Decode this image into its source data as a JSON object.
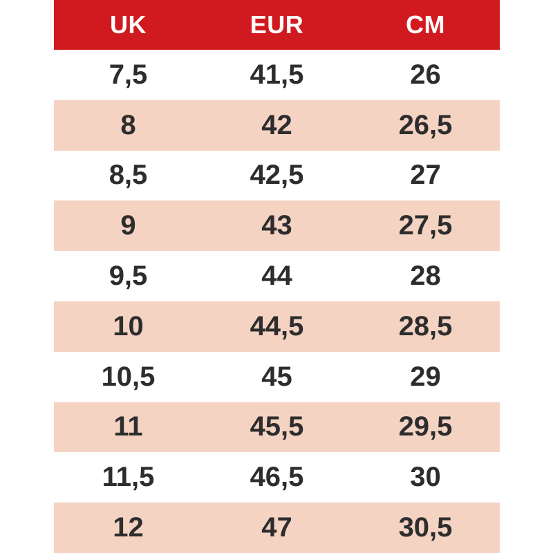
{
  "colors": {
    "page_bg": "#ffffff",
    "header_bg": "#d11a1f",
    "header_text": "#ffffff",
    "row_bg": "#ffffff",
    "row_alt_bg": "#f5d3c3",
    "cell_text": "#2d2d2d"
  },
  "chart_data": {
    "type": "table",
    "title": "",
    "columns": [
      "UK",
      "EUR",
      "CM"
    ],
    "rows": [
      [
        "7,5",
        "41,5",
        "26"
      ],
      [
        "8",
        "42",
        "26,5"
      ],
      [
        "8,5",
        "42,5",
        "27"
      ],
      [
        "9",
        "43",
        "27,5"
      ],
      [
        "9,5",
        "44",
        "28"
      ],
      [
        "10",
        "44,5",
        "28,5"
      ],
      [
        "10,5",
        "45",
        "29"
      ],
      [
        "11",
        "45,5",
        "29,5"
      ],
      [
        "11,5",
        "46,5",
        "30"
      ],
      [
        "12",
        "47",
        "30,5"
      ]
    ],
    "layout_hints": {
      "zebra_striping": true,
      "striped_rows": "even",
      "header_position": "top",
      "alignment": "center"
    }
  }
}
